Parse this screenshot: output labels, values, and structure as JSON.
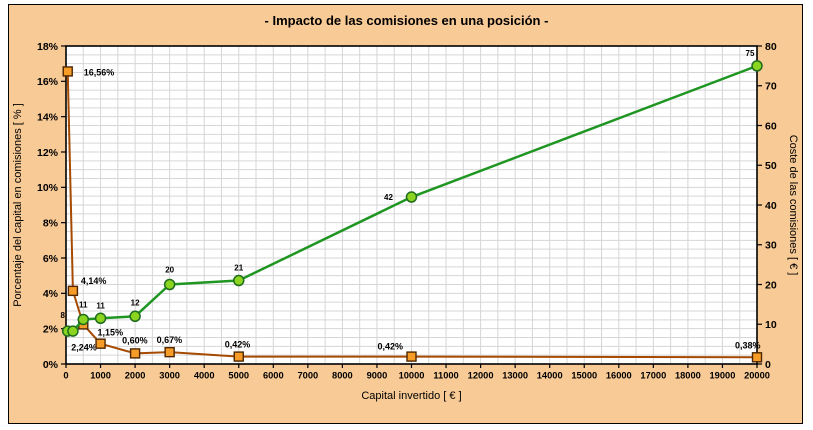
{
  "chart_data": {
    "type": "line",
    "title": "- Impacto de las comisiones en una posición -",
    "xlabel": "Capital invertido [ € ]",
    "ylabel_left": "Porcentaje del capital en comisiones [ % ]",
    "ylabel_right": "Coste de las comisiones [ € ]",
    "x_axis": {
      "min": 0,
      "max": 20000,
      "major": 1000,
      "minor": 500,
      "tick_labels": [
        "0",
        "1000",
        "2000",
        "3000",
        "4000",
        "5000",
        "6000",
        "7000",
        "8000",
        "9000",
        "10000",
        "11000",
        "12000",
        "13000",
        "14000",
        "15000",
        "16000",
        "17000",
        "18000",
        "19000",
        "20000"
      ]
    },
    "y_left": {
      "min": 0,
      "max": 18,
      "major": 2,
      "minor": 0.5,
      "tick_labels": [
        "0%",
        "2%",
        "4%",
        "6%",
        "8%",
        "10%",
        "12%",
        "14%",
        "16%",
        "18%"
      ]
    },
    "y_right": {
      "min": 0,
      "max": 80,
      "major": 10,
      "tick_labels": [
        "0",
        "10",
        "20",
        "30",
        "40",
        "50",
        "60",
        "70",
        "80"
      ]
    },
    "grid": true,
    "legend": "none",
    "colors": {
      "background": "#F8CA96",
      "plot_background": "#FFFFFF",
      "grid": "#D6D6D6",
      "axis": "#000000",
      "series_pct_line": "#A54A00",
      "series_pct_marker_fill": "#F89C28",
      "series_pct_marker_border": "#4E2700",
      "series_cost_line": "#1F9522",
      "series_cost_marker_fill": "#8BD41F",
      "series_cost_marker_border": "#1F6B1F"
    },
    "series": [
      {
        "name": "Porcentaje del capital en comisiones [ % ]",
        "axis": "left",
        "marker": "square",
        "points": [
          {
            "x": 50,
            "y": 16.56,
            "label": "16,56%"
          },
          {
            "x": 200,
            "y": 4.14,
            "label": "4,14%"
          },
          {
            "x": 500,
            "y": 2.24,
            "label": "2,24%"
          },
          {
            "x": 1000,
            "y": 1.15,
            "label": "1,15%"
          },
          {
            "x": 2000,
            "y": 0.6,
            "label": "0,60%"
          },
          {
            "x": 3000,
            "y": 0.67,
            "label": "0,67%"
          },
          {
            "x": 5000,
            "y": 0.42,
            "label": "0,42%"
          },
          {
            "x": 10000,
            "y": 0.42,
            "label": "0,42%"
          },
          {
            "x": 20000,
            "y": 0.38,
            "label": "0,38%"
          }
        ]
      },
      {
        "name": "Coste de las comisiones [ € ]",
        "axis": "right",
        "marker": "circle",
        "points": [
          {
            "x": 50,
            "y": 8.28,
            "label": "8"
          },
          {
            "x": 200,
            "y": 8.28,
            "label": ""
          },
          {
            "x": 500,
            "y": 11.2,
            "label": "11"
          },
          {
            "x": 1000,
            "y": 11.5,
            "label": "11"
          },
          {
            "x": 2000,
            "y": 12,
            "label": "12"
          },
          {
            "x": 3000,
            "y": 20,
            "label": "20"
          },
          {
            "x": 5000,
            "y": 21,
            "label": "21"
          },
          {
            "x": 10000,
            "y": 42,
            "label": "42"
          },
          {
            "x": 20000,
            "y": 75,
            "label": "75"
          }
        ]
      }
    ]
  }
}
